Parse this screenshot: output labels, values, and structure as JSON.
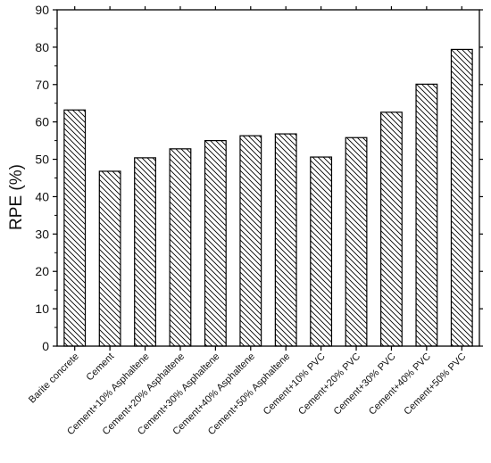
{
  "chart_data": {
    "type": "bar",
    "title": "",
    "xlabel": "",
    "ylabel": "RPE (%)",
    "ylim": [
      0,
      90
    ],
    "yticks": [
      0,
      10,
      20,
      30,
      40,
      50,
      60,
      70,
      80,
      90
    ],
    "grid": false,
    "bar_fill": "diagonal hatch",
    "colors": {
      "bar_stroke": "#000000",
      "hatch": "#000000",
      "background": "#ffffff"
    },
    "categories": [
      "Barite concrete",
      "Cement",
      "Cement+10% Asphaltene",
      "Cement+20% Asphaltene",
      "Cement+30% Asphaltene",
      "Cement+40% Asphaltene",
      "Cement+50% Asphaltene",
      "Cement+10% PVC",
      "Cement+20% PVC",
      "Cement+30% PVC",
      "Cement+40% PVC",
      "Cement+50% PVC"
    ],
    "values": [
      63.2,
      46.8,
      50.4,
      52.8,
      55.0,
      56.3,
      56.8,
      50.6,
      55.8,
      62.6,
      70.1,
      79.4
    ]
  }
}
